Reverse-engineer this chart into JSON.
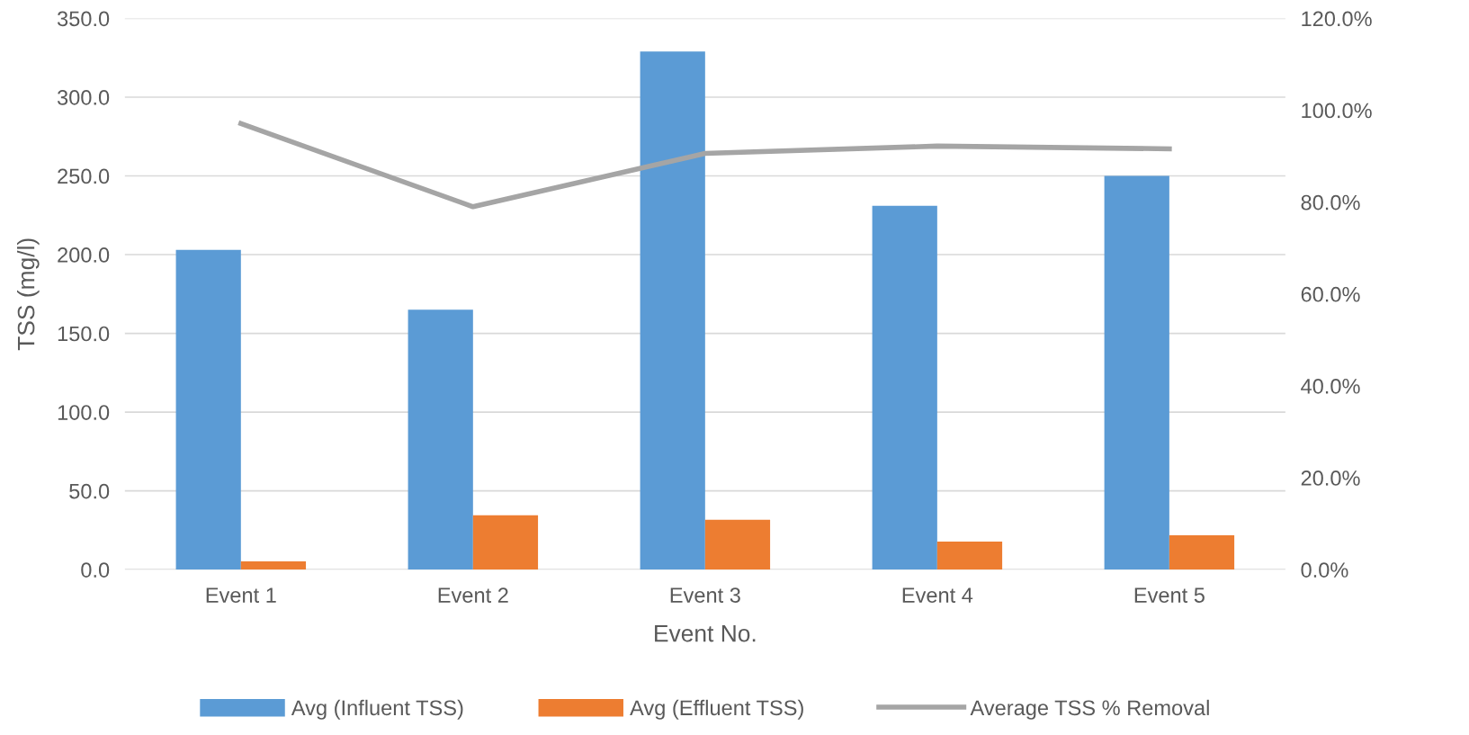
{
  "chart_data": {
    "type": "bar",
    "xlabel": "Event No.",
    "ylabel": "TSS (mg/l)",
    "categories": [
      "Event 1",
      "Event 2",
      "Event 3",
      "Event 4",
      "Event 5"
    ],
    "series": [
      {
        "name": "Avg (Influent TSS)",
        "color": "#5b9bd5",
        "values": [
          203,
          165,
          329,
          231,
          250
        ]
      },
      {
        "name": "Avg (Effluent TSS)",
        "color": "#ed7d31",
        "values": [
          5.2,
          34.5,
          31.6,
          17.8,
          21.8
        ]
      },
      {
        "name": "Average TSS % Removal",
        "type": "line",
        "axis": "y2",
        "color": "#a5a5a5",
        "values": [
          97.1,
          79.0,
          90.6,
          92.2,
          91.6
        ]
      }
    ],
    "ylim": [
      0,
      350
    ],
    "yticks": [
      {
        "value": 0,
        "label": "0.0"
      },
      {
        "value": 50,
        "label": "50.0"
      },
      {
        "value": 100,
        "label": "100.0"
      },
      {
        "value": 150,
        "label": "150.0"
      },
      {
        "value": 200,
        "label": "200.0"
      },
      {
        "value": 250,
        "label": "250.0"
      },
      {
        "value": 300,
        "label": "300.0"
      },
      {
        "value": 350,
        "label": "350.0"
      }
    ],
    "y2lim": [
      0,
      120
    ],
    "y2ticks": [
      {
        "value": 0,
        "label": "0.0%"
      },
      {
        "value": 20,
        "label": "20.0%"
      },
      {
        "value": 40,
        "label": "40.0%"
      },
      {
        "value": 60,
        "label": "60.0%"
      },
      {
        "value": 80,
        "label": "80.0%"
      },
      {
        "value": 100,
        "label": "100.0%"
      },
      {
        "value": 120,
        "label": "120.0%"
      }
    ],
    "grid": "y",
    "legend": "bottom",
    "marker": "none",
    "line_style": "solid"
  }
}
